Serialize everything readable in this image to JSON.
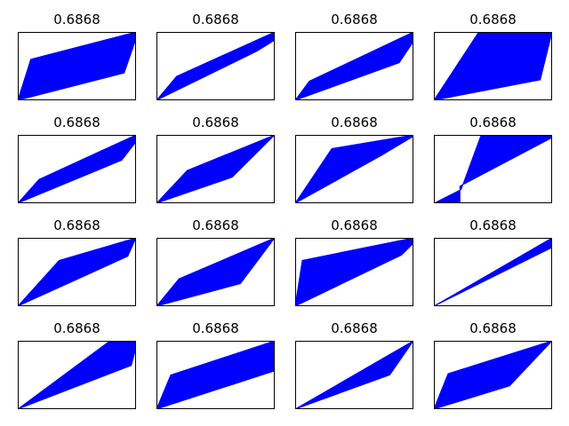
{
  "chart_data": [
    {
      "type": "line",
      "title": "0.6868",
      "band": [
        [
          0,
          0
        ],
        [
          0.11,
          0.6
        ],
        [
          1,
          1
        ],
        [
          1,
          0.9
        ],
        [
          0.9,
          0.4
        ],
        [
          0,
          0
        ]
      ],
      "color": "#0000ff",
      "ylim": [
        0,
        1
      ],
      "xticks": [],
      "yticks": []
    },
    {
      "type": "line",
      "title": "0.6868",
      "band": [
        [
          0,
          0
        ],
        [
          0.17,
          0.35
        ],
        [
          1,
          1
        ],
        [
          1,
          0.88
        ],
        [
          0.85,
          0.72
        ],
        [
          0,
          0
        ]
      ],
      "color": "#0000ff",
      "ylim": [
        0,
        1
      ],
      "xticks": [],
      "yticks": []
    },
    {
      "type": "line",
      "title": "0.6868",
      "band": [
        [
          0,
          0
        ],
        [
          0.12,
          0.28
        ],
        [
          1,
          1
        ],
        [
          1,
          0.86
        ],
        [
          0.88,
          0.55
        ],
        [
          0,
          0
        ]
      ],
      "color": "#0000ff",
      "ylim": [
        0,
        1
      ],
      "xticks": [],
      "yticks": []
    },
    {
      "type": "line",
      "title": "0.6868",
      "band": [
        [
          0,
          0
        ],
        [
          0.38,
          1
        ],
        [
          1,
          1
        ],
        [
          0.9,
          0.3
        ],
        [
          0,
          0
        ]
      ],
      "color": "#0000ff",
      "ylim": [
        0,
        1
      ],
      "xticks": [],
      "yticks": []
    },
    {
      "type": "line",
      "title": "0.6868",
      "band": [
        [
          0,
          0
        ],
        [
          0.18,
          0.35
        ],
        [
          1,
          1
        ],
        [
          1,
          0.9
        ],
        [
          0.88,
          0.63
        ],
        [
          0,
          0
        ]
      ],
      "color": "#0000ff",
      "ylim": [
        0,
        1
      ],
      "xticks": [],
      "yticks": []
    },
    {
      "type": "line",
      "title": "0.6868",
      "band": [
        [
          0,
          0
        ],
        [
          0.26,
          0.48
        ],
        [
          1,
          1
        ],
        [
          0.64,
          0.38
        ],
        [
          0,
          0
        ]
      ],
      "color": "#0000ff",
      "ylim": [
        0,
        1
      ],
      "xticks": [],
      "yticks": []
    },
    {
      "type": "line",
      "title": "0.6868",
      "band": [
        [
          0,
          0
        ],
        [
          0.31,
          0.8
        ],
        [
          1,
          1
        ],
        [
          1,
          0.98
        ],
        [
          0.73,
          0.7
        ],
        [
          0,
          0
        ]
      ],
      "color": "#0000ff",
      "ylim": [
        0,
        1
      ],
      "xticks": [],
      "yticks": []
    },
    {
      "type": "line",
      "title": "0.6868",
      "band": [
        [
          0,
          0
        ],
        [
          0.23,
          0.2
        ],
        [
          0.4,
          1
        ],
        [
          1,
          1
        ],
        [
          1,
          0.96
        ],
        [
          0.22,
          0.25
        ],
        [
          0.22,
          0
        ],
        [
          0,
          0
        ]
      ],
      "color": "#0000ff",
      "ylim": [
        0,
        1
      ],
      "xticks": [],
      "yticks": []
    },
    {
      "type": "line",
      "title": "0.6868",
      "band": [
        [
          0,
          0
        ],
        [
          0.35,
          0.67
        ],
        [
          1,
          1
        ],
        [
          0.93,
          0.73
        ],
        [
          0,
          0
        ]
      ],
      "color": "#0000ff",
      "ylim": [
        0,
        1
      ],
      "xticks": [],
      "yticks": []
    },
    {
      "type": "line",
      "title": "0.6868",
      "band": [
        [
          0,
          0
        ],
        [
          0.19,
          0.4
        ],
        [
          1,
          1
        ],
        [
          0.71,
          0.33
        ],
        [
          0,
          0
        ]
      ],
      "color": "#0000ff",
      "ylim": [
        0,
        1
      ],
      "xticks": [],
      "yticks": []
    },
    {
      "type": "line",
      "title": "0.6868",
      "band": [
        [
          0,
          0
        ],
        [
          0.06,
          0.67
        ],
        [
          1,
          1
        ],
        [
          1,
          0.92
        ],
        [
          0.9,
          0.75
        ],
        [
          0,
          0
        ]
      ],
      "color": "#0000ff",
      "ylim": [
        0,
        1
      ],
      "xticks": [],
      "yticks": []
    },
    {
      "type": "line",
      "title": "0.6868",
      "band": [
        [
          0,
          0
        ],
        [
          1,
          1
        ],
        [
          1,
          0.86
        ],
        [
          0,
          0
        ]
      ],
      "color": "#0000ff",
      "ylim": [
        0,
        1
      ],
      "xticks": [],
      "yticks": []
    },
    {
      "type": "line",
      "title": "0.6868",
      "band": [
        [
          0,
          0
        ],
        [
          0.78,
          1
        ],
        [
          1,
          1
        ],
        [
          1,
          0.9
        ],
        [
          0.96,
          0.64
        ],
        [
          0,
          0
        ]
      ],
      "color": "#0000ff",
      "ylim": [
        0,
        1
      ],
      "xticks": [],
      "yticks": []
    },
    {
      "type": "line",
      "title": "0.6868",
      "band": [
        [
          0,
          0
        ],
        [
          0.12,
          0.5
        ],
        [
          1,
          1
        ],
        [
          1,
          0.56
        ],
        [
          0,
          0
        ]
      ],
      "color": "#0000ff",
      "ylim": [
        0,
        1
      ],
      "xticks": [],
      "yticks": []
    },
    {
      "type": "line",
      "title": "0.6868",
      "band": [
        [
          0,
          0
        ],
        [
          1,
          1
        ],
        [
          0.8,
          0.5
        ],
        [
          0,
          0
        ]
      ],
      "color": "#0000ff",
      "ylim": [
        0,
        1
      ],
      "xticks": [],
      "yticks": []
    },
    {
      "type": "line",
      "title": "0.6868",
      "band": [
        [
          0,
          0
        ],
        [
          0.12,
          0.52
        ],
        [
          1,
          1
        ],
        [
          0.64,
          0.34
        ],
        [
          0,
          0
        ]
      ],
      "color": "#0000ff",
      "ylim": [
        0,
        1
      ],
      "xticks": [],
      "yticks": []
    }
  ]
}
